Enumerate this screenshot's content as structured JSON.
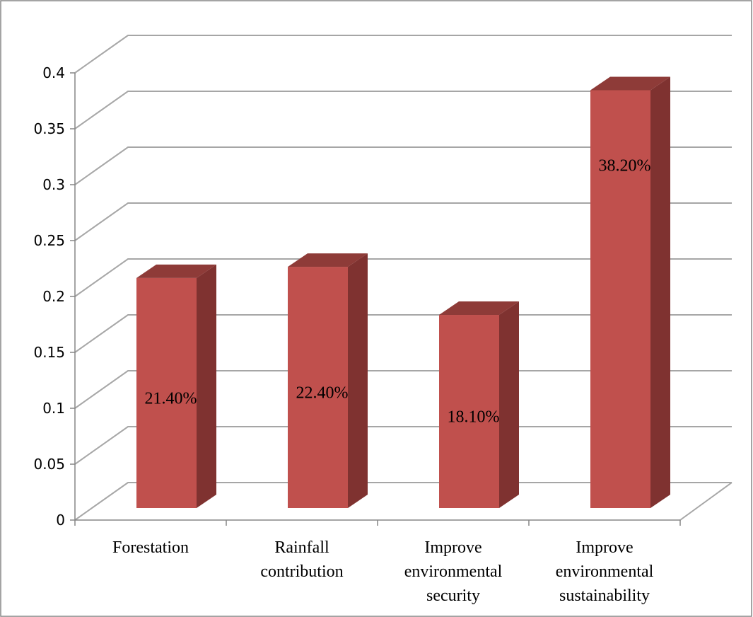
{
  "chart_data": {
    "type": "bar",
    "style": "3d-column",
    "categories": [
      "Forestation",
      "Rainfall contribution",
      "Improve environmental security",
      "Improve environmental sustainability"
    ],
    "category_lines": [
      [
        "Forestation"
      ],
      [
        "Rainfall",
        "contribution"
      ],
      [
        "Improve",
        "environmental",
        "security"
      ],
      [
        "Improve",
        "environmental",
        "sustainability"
      ]
    ],
    "values": [
      0.214,
      0.224,
      0.181,
      0.382
    ],
    "data_labels": [
      "21.40%",
      "22.40%",
      "18.10%",
      "38.20%"
    ],
    "y_ticks": [
      "0",
      "0.05",
      "0.1",
      "0.15",
      "0.2",
      "0.25",
      "0.3",
      "0.35",
      "0.4"
    ],
    "ylim": [
      0,
      0.4
    ],
    "grid": true,
    "legend": "none",
    "title": "",
    "xlabel": "",
    "ylabel": "",
    "colors": {
      "bar_front": "#C0504D",
      "bar_side": "#7F3230",
      "bar_top": "#8E3B38",
      "grid": "#A6A6A6",
      "border": "#868686"
    }
  }
}
